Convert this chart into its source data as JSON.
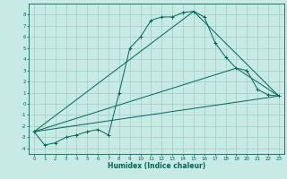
{
  "title": "",
  "xlabel": "Humidex (Indice chaleur)",
  "bg_color": "#c8eae4",
  "grid_color": "#a0ccc4",
  "line_color": "#006655",
  "xlim": [
    -0.5,
    23.5
  ],
  "ylim": [
    -4.5,
    9.0
  ],
  "xticks": [
    0,
    1,
    2,
    3,
    4,
    5,
    6,
    7,
    8,
    9,
    10,
    11,
    12,
    13,
    14,
    15,
    16,
    17,
    18,
    19,
    20,
    21,
    22,
    23
  ],
  "yticks": [
    -4,
    -3,
    -2,
    -1,
    0,
    1,
    2,
    3,
    4,
    5,
    6,
    7,
    8
  ],
  "series": [
    [
      0,
      -2.5
    ],
    [
      1,
      -3.7
    ],
    [
      2,
      -3.5
    ],
    [
      3,
      -3.0
    ],
    [
      4,
      -2.8
    ],
    [
      5,
      -2.5
    ],
    [
      6,
      -2.3
    ],
    [
      7,
      -2.8
    ],
    [
      8,
      1.0
    ],
    [
      9,
      5.0
    ],
    [
      10,
      6.0
    ],
    [
      11,
      7.5
    ],
    [
      12,
      7.8
    ],
    [
      13,
      7.8
    ],
    [
      14,
      8.2
    ],
    [
      15,
      8.3
    ],
    [
      16,
      7.8
    ],
    [
      17,
      5.5
    ],
    [
      18,
      4.2
    ],
    [
      19,
      3.2
    ],
    [
      20,
      3.0
    ],
    [
      21,
      1.3
    ],
    [
      22,
      0.8
    ],
    [
      23,
      0.7
    ]
  ],
  "line2": [
    [
      0,
      -2.5
    ],
    [
      23,
      0.7
    ]
  ],
  "line3": [
    [
      0,
      -2.5
    ],
    [
      15,
      8.3
    ],
    [
      23,
      0.7
    ]
  ],
  "line4": [
    [
      0,
      -2.5
    ],
    [
      19,
      3.2
    ],
    [
      23,
      0.7
    ]
  ]
}
